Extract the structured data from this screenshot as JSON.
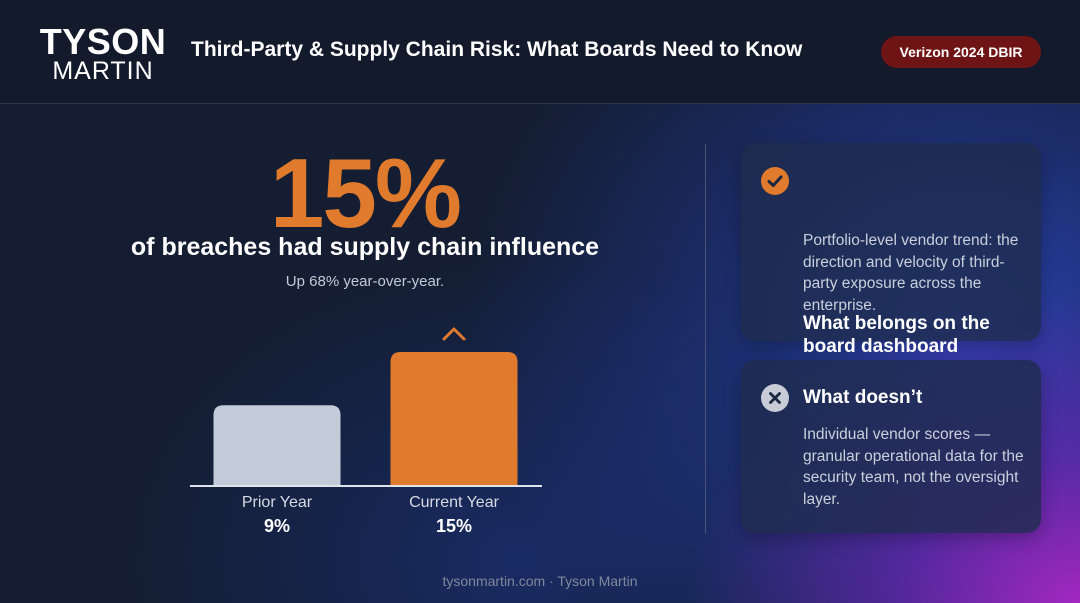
{
  "header": {
    "logo_line1": "TYSON",
    "logo_line2": "MARTIN",
    "title": "Third-Party & Supply Chain Risk: What Boards Need to Know",
    "source_badge": "Verizon 2024 DBIR"
  },
  "stat": {
    "value": "15%",
    "caption": "of breaches had supply chain influence",
    "subcaption": "Up 68% year-over-year."
  },
  "chart_data": {
    "type": "bar",
    "categories": [
      "Prior Year",
      "Current Year"
    ],
    "values": [
      9,
      15
    ],
    "value_labels": [
      "9%",
      "15%"
    ],
    "colors": [
      "#c3cbd9",
      "#e07a2c"
    ],
    "title": "",
    "xlabel": "",
    "ylabel": "",
    "ylim": [
      0,
      15
    ],
    "grid": false,
    "increase_marker": "chevron-up-icon"
  },
  "cards": [
    {
      "icon": "check-circle-icon",
      "title": "What belongs on the board dashboard",
      "body": "Portfolio-level vendor trend: the direction and velocity of third-party exposure across the enterprise.",
      "accent": "#e07a2c"
    },
    {
      "icon": "x-circle-icon",
      "title": "What doesn’t",
      "body": "Individual vendor scores — granular operational data for the security team, not the oversight layer.",
      "accent": "#c7ccd6"
    }
  ],
  "footer": {
    "text": "tysonmartin.com · Tyson Martin"
  },
  "colors": {
    "accent_orange": "#e07a2c",
    "badge_red": "#6e1414",
    "background": "#141d31"
  }
}
